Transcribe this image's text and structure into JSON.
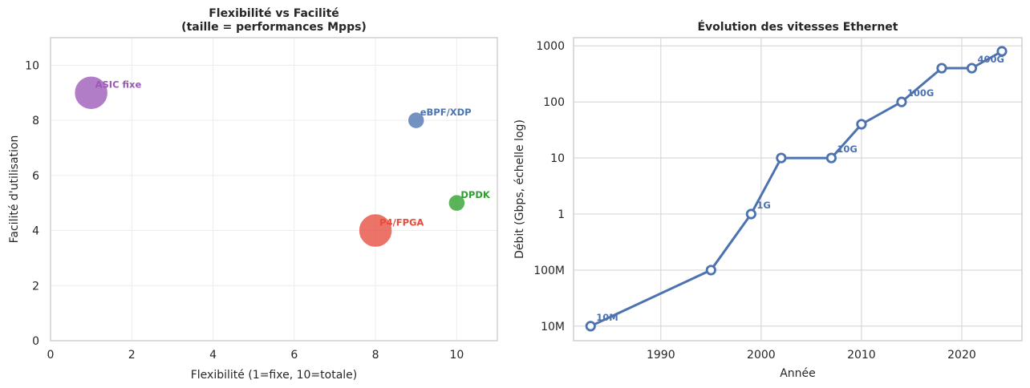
{
  "chart_data": [
    {
      "type": "scatter",
      "title": "Flexibilité vs Facilité",
      "subtitle": "(taille = performances Mpps)",
      "xlabel": "Flexibilité (1=fixe, 10=totale)",
      "ylabel": "Facilité d'utilisation",
      "xlim": [
        0,
        11
      ],
      "ylim": [
        0,
        11
      ],
      "xticks": [
        0,
        2,
        4,
        6,
        8,
        10
      ],
      "yticks": [
        0,
        2,
        4,
        6,
        8,
        10
      ],
      "grid": true,
      "points": [
        {
          "label": "ASIC fixe",
          "x": 1,
          "y": 9,
          "mpps": 1000,
          "color": "#9b59b6"
        },
        {
          "label": "eBPF/XDP",
          "x": 9,
          "y": 8,
          "mpps": 24,
          "color": "#4c72b0"
        },
        {
          "label": "DPDK",
          "x": 10,
          "y": 5,
          "mpps": 30,
          "color": "#2ca02c"
        },
        {
          "label": "P4/FPGA",
          "x": 8,
          "y": 4,
          "mpps": 1000,
          "color": "#e74c3c"
        }
      ]
    },
    {
      "type": "line",
      "title": "Évolution des vitesses Ethernet",
      "xlabel": "Année",
      "ylabel": "Débit (Gbps, échelle log)",
      "yscale": "log",
      "xlim": [
        1981.3,
        2026
      ],
      "ylim": [
        0.0055,
        1400
      ],
      "xticks": [
        1990,
        2000,
        2010,
        2020
      ],
      "yticks": [
        {
          "value": 0.01,
          "label": "10M"
        },
        {
          "value": 0.1,
          "label": "100M"
        },
        {
          "value": 1,
          "label": "1"
        },
        {
          "value": 10,
          "label": "10"
        },
        {
          "value": 100,
          "label": "100"
        },
        {
          "value": 1000,
          "label": "1000"
        }
      ],
      "grid": true,
      "color": "#4c72b0",
      "x": [
        1983,
        1995,
        1999,
        2002,
        2007,
        2010,
        2014,
        2018,
        2021,
        2024
      ],
      "y": [
        0.01,
        0.1,
        1,
        10,
        10,
        40,
        100,
        400,
        400,
        800
      ],
      "annotations": [
        {
          "label": "10M",
          "x": 1983,
          "y": 0.01
        },
        {
          "label": "1G",
          "x": 1999,
          "y": 1
        },
        {
          "label": "10G",
          "x": 2007,
          "y": 10
        },
        {
          "label": "100G",
          "x": 2014,
          "y": 100
        },
        {
          "label": "400G",
          "x": 2021,
          "y": 400
        }
      ]
    }
  ]
}
